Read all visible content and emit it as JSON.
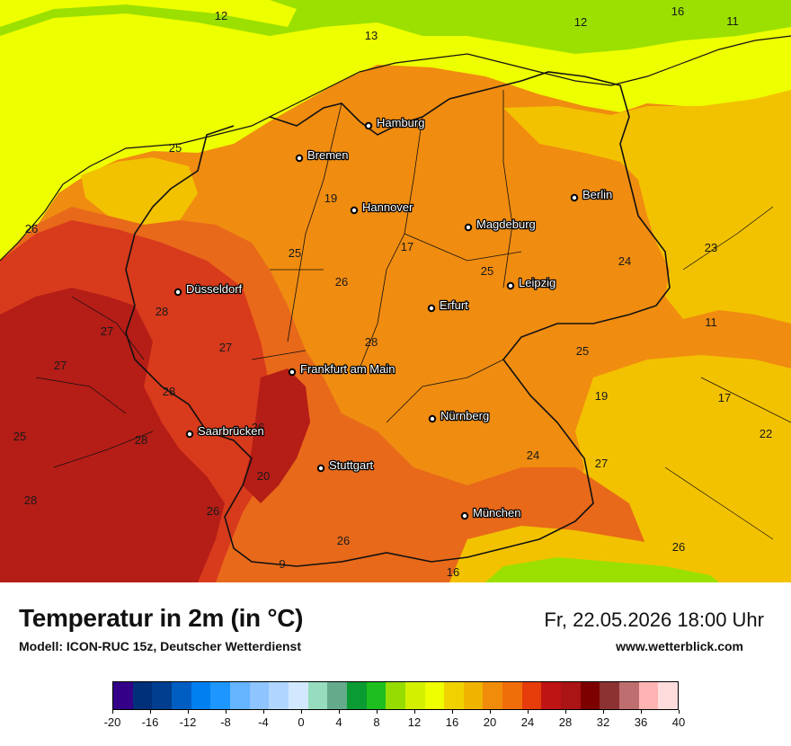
{
  "map": {
    "title": "Temperatur in 2m (in °C)",
    "model": "Modell: ICON-RUC 15z, Deutscher Wetterdienst",
    "datetime": "Fr, 22.05.2026 18:00 Uhr",
    "website": "www.wetterblick.com",
    "colors": {
      "sea": "#9be000",
      "coast_yellow": "#eeff00",
      "gold": "#f2c200",
      "orange": "#f08c10",
      "dark_orange": "#e8691a",
      "red": "#d83a1c",
      "dark_red": "#b51d17",
      "borders": "#111111"
    },
    "cities": [
      {
        "name": "Hamburg"
      },
      {
        "name": "Bremen"
      },
      {
        "name": "Berlin"
      },
      {
        "name": "Hannover"
      },
      {
        "name": "Magdeburg"
      },
      {
        "name": "Düsseldorf"
      },
      {
        "name": "Leipzig"
      },
      {
        "name": "Erfurt"
      },
      {
        "name": "Frankfurt am Main"
      },
      {
        "name": "Nürnberg"
      },
      {
        "name": "Saarbrücken"
      },
      {
        "name": "Stuttgart"
      },
      {
        "name": "München"
      }
    ],
    "temperature_labels": [
      "12",
      "13",
      "12",
      "16",
      "11",
      "25",
      "19",
      "26",
      "25",
      "17",
      "26",
      "25",
      "24",
      "23",
      "28",
      "27",
      "11",
      "27",
      "28",
      "25",
      "27",
      "19",
      "17",
      "28",
      "25",
      "26",
      "22",
      "28",
      "20",
      "24",
      "28",
      "26",
      "27",
      "26",
      "9",
      "16",
      "26"
    ]
  },
  "legend": {
    "unit": "°C",
    "colors": [
      "#330087",
      "#00307a",
      "#003f8f",
      "#005ec3",
      "#0080f0",
      "#1e96ff",
      "#64b4ff",
      "#8ec4ff",
      "#b0d6ff",
      "#d2e8ff",
      "#96dcbe",
      "#64ab8c",
      "#0a9b32",
      "#1ebe1e",
      "#96dc00",
      "#d2f000",
      "#f0ff00",
      "#f0d200",
      "#f0b400",
      "#f08c0a",
      "#f06e0a",
      "#e63c0a",
      "#be1414",
      "#aa1414",
      "#7d0000",
      "#8c3232",
      "#be6e6e",
      "#ffb4b4",
      "#ffdcdc"
    ],
    "ticks": [
      "-20",
      "-16",
      "-12",
      "-8",
      "-4",
      "0",
      "4",
      "8",
      "12",
      "16",
      "20",
      "24",
      "28",
      "32",
      "36",
      "40"
    ]
  }
}
